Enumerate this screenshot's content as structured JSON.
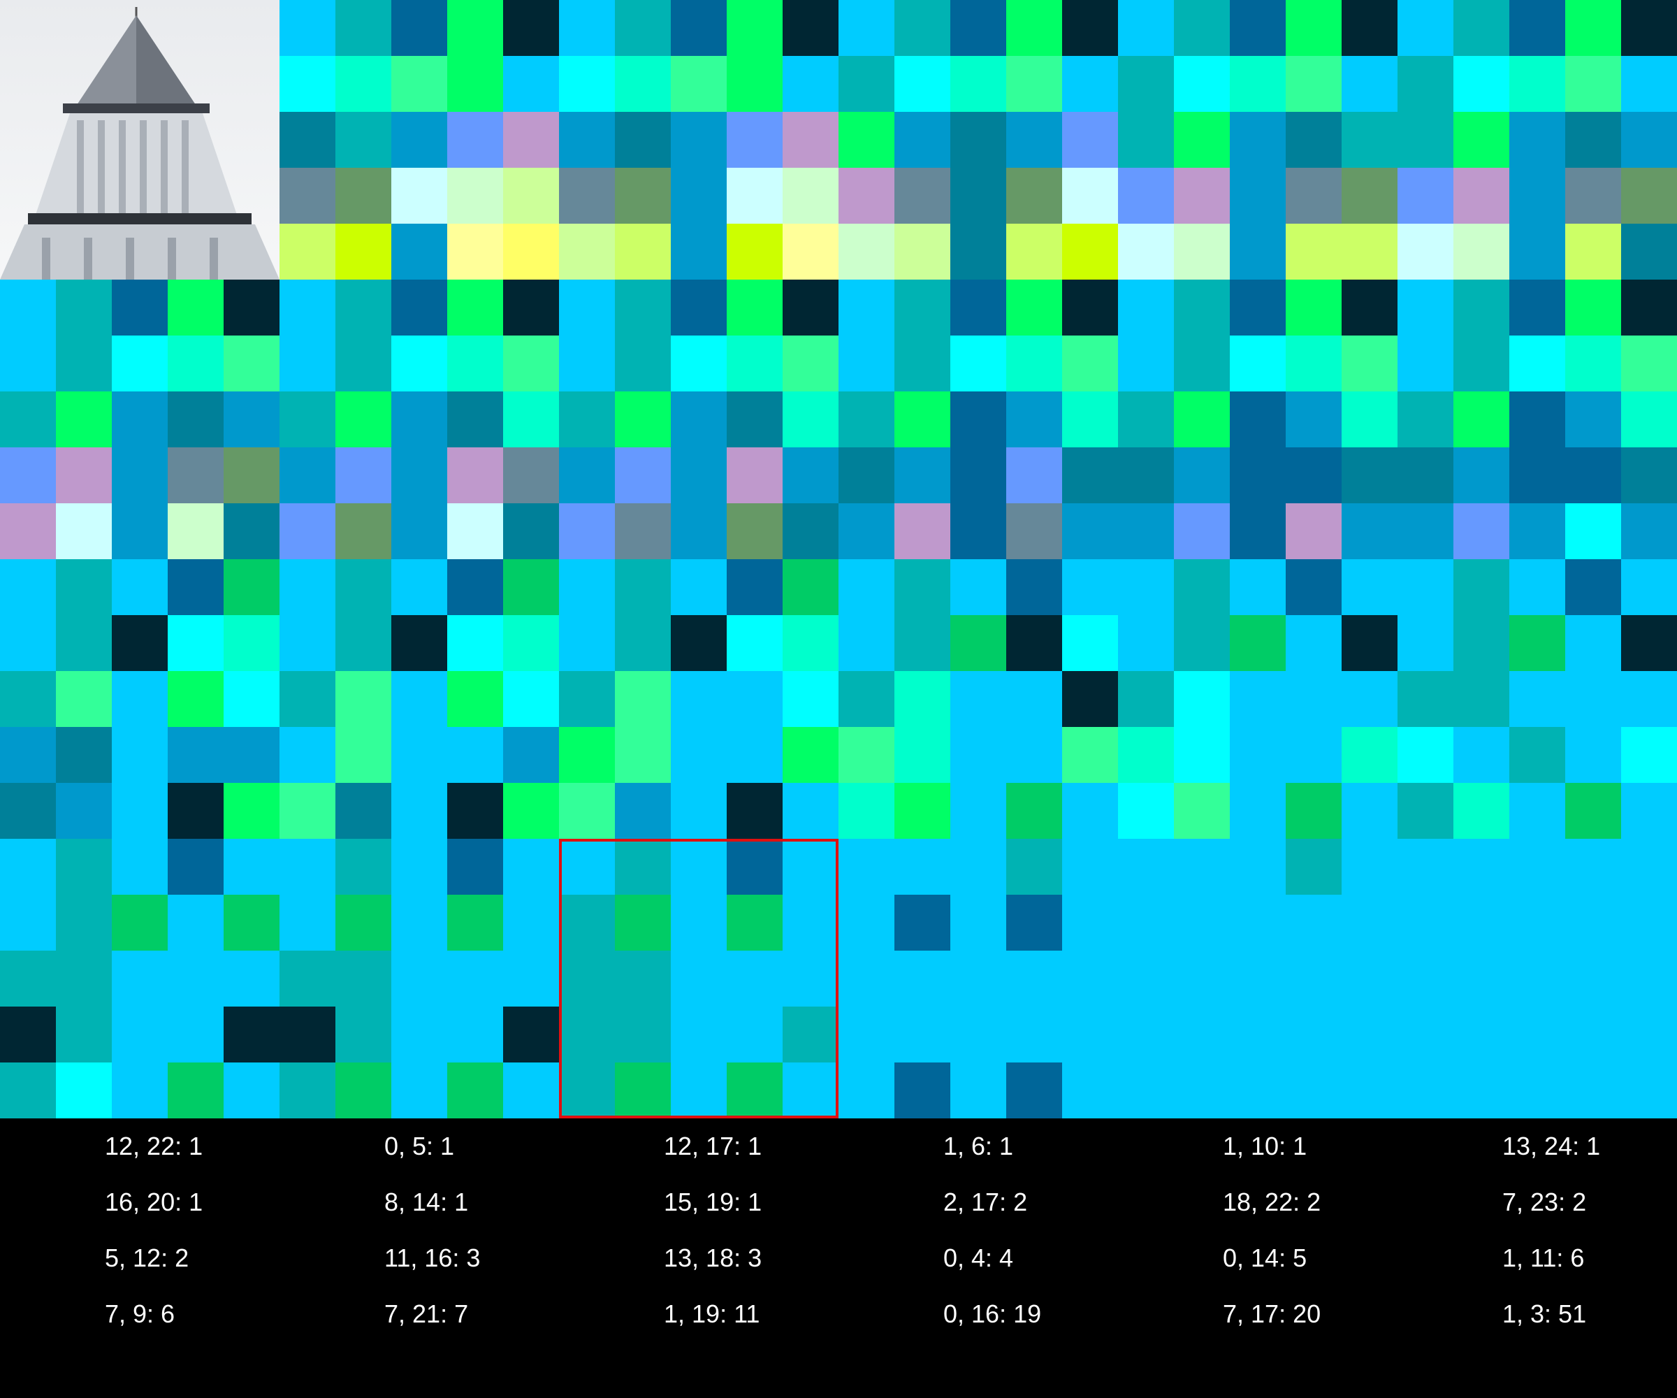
{
  "palette": {
    "S": "#00ccff",
    "T": "#00b3b3",
    "N": "#006699",
    "G": "#00cc66",
    "K": "#002633",
    "A": "#00ffff",
    "Q": "#00ffcc",
    "M": "#33ff99",
    "L": "#00ff66",
    "B": "#0099cc",
    "E": "#008099",
    "F": "#0099b3",
    "P": "#6699ff",
    "V": "#bf99cc",
    "W": "#668899",
    "O": "#669966",
    "C": "#ccffff",
    "Y": "#ccffcc",
    "R": "#ccff99",
    "U": "#ccff66",
    "D": "#ccff00",
    "H": "#ffff99",
    "I": "#ffff66"
  },
  "grid": [
    "SSSSSSTNLKSTNLKSTNLKSTNLKSTNLK",
    "SSSSSAQMLSAQMLSTAQMSTAQMSTAQMS",
    "BBBBBETBPVBEBPVLBEBPTLBETTLBEB",
    "BBBBBWOCYRWOBCYVWEOCPVBWOPVBWO",
    "BBBBBUDBHIRUBDHYREUDCYBUUCYBUE",
    "STNLKSTNLKSTNLKSTNLKSTNLKSTNLK",
    "STAQMSTAQMSTAQMSTAQMSTAQMSTAQM",
    "TLBEBTLBEQTLBEQTLNBQTLNBQTLNBQ",
    "PVBWOBPBVWBPBVBEBNPEEBNNEEBNNE",
    "VCBYEPOBCEPWBOEBVNWBBPNVBBPBAB",
    "STSNGSTSNGSTSNGSTSNSSTSNSSTSNS",
    "STKAQSTKAQSTKAQSTGKASTGSKSTGSK",
    "TMSLATMSLATMSSATQSSKTASSSTTSSS",
    "BESBBSMSSBLMSSLMQSSMQASSQASTSA",
    "EBSKLMESKLMBSKSQLSGSAMSGSTQSGS",
    "STSNSSTSNSSTSNSSSSTSSSSTSSSSSS",
    "STGSGSGSGSTGSGSSNSNSSSSSSSSSSS",
    "TTSSSTTSSSTTSSSSSSSSSSSSSSSSSS",
    "KTSSKKTSSKTTSSTSSSSSSSSSSSSSSS",
    "TASGSTGSGSTGSGSSNSNSSSSSSSSSSS"
  ],
  "legend": [
    "12, 22: 1",
    "0, 5: 1",
    "12, 17: 1",
    "1, 6: 1",
    "1, 10: 1",
    "13, 24: 1",
    "16, 20: 1",
    "8, 14: 1",
    "15, 19: 1",
    "2, 17: 2",
    "18, 22: 2",
    "7, 23: 2",
    "5, 12: 2",
    "11, 16: 3",
    "13, 18: 3",
    "0, 4: 4",
    "0, 14: 5",
    "1, 11: 6",
    "7, 9: 6",
    "7, 21: 7",
    "1, 19: 11",
    "0, 16: 19",
    "7, 17: 20",
    "1, 3: 51"
  ],
  "thumbnail": {
    "icon": "tower-photo-thumbnail"
  },
  "selection": {
    "row": 15,
    "col": 10,
    "rows": 5,
    "cols": 5,
    "color": "#e01010"
  }
}
